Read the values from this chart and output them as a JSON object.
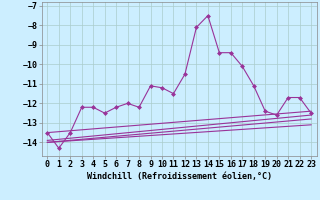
{
  "x": [
    0,
    1,
    2,
    3,
    4,
    5,
    6,
    7,
    8,
    9,
    10,
    11,
    12,
    13,
    14,
    15,
    16,
    17,
    18,
    19,
    20,
    21,
    22,
    23
  ],
  "main_line": [
    -13.5,
    -14.3,
    -13.5,
    -12.2,
    -12.2,
    -12.5,
    -12.2,
    -12.0,
    -12.2,
    -11.1,
    -11.2,
    -11.5,
    -10.5,
    -8.1,
    -7.5,
    -9.4,
    -9.4,
    -10.1,
    -11.1,
    -12.4,
    -12.6,
    -11.7,
    -11.7,
    -12.5
  ],
  "trend_lines": [
    [
      [
        0,
        23
      ],
      [
        -13.5,
        -12.4
      ]
    ],
    [
      [
        0,
        23
      ],
      [
        -13.9,
        -12.6
      ]
    ],
    [
      [
        0,
        23
      ],
      [
        -14.0,
        -12.8
      ]
    ],
    [
      [
        0,
        23
      ],
      [
        -14.0,
        -13.1
      ]
    ]
  ],
  "line_color": "#993399",
  "background_color": "#cceeff",
  "grid_color": "#aacccc",
  "ylim": [
    -14.7,
    -6.8
  ],
  "xlim": [
    -0.5,
    23.5
  ],
  "yticks": [
    -7,
    -8,
    -9,
    -10,
    -11,
    -12,
    -13,
    -14
  ],
  "xticks": [
    0,
    1,
    2,
    3,
    4,
    5,
    6,
    7,
    8,
    9,
    10,
    11,
    12,
    13,
    14,
    15,
    16,
    17,
    18,
    19,
    20,
    21,
    22,
    23
  ],
  "xlabel": "Windchill (Refroidissement éolien,°C)",
  "xlabel_fontsize": 6.0,
  "tick_fontsize": 6.0,
  "marker": "D",
  "marker_size": 2.0,
  "linewidth": 0.8
}
